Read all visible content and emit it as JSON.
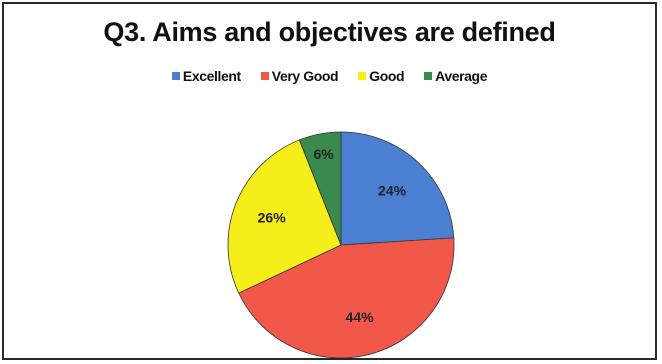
{
  "chart_data": {
    "type": "pie",
    "title": "Q3. Aims and objectives are defined",
    "legend_position": "top",
    "categories": [
      "Excellent",
      "Very Good",
      "Good",
      "Average"
    ],
    "values": [
      24,
      44,
      26,
      6
    ],
    "labels": [
      "24%",
      "44%",
      "26%",
      "6%"
    ],
    "colors": [
      "#4a7fd2",
      "#f2584a",
      "#f5ee1a",
      "#3a8a4e"
    ]
  }
}
